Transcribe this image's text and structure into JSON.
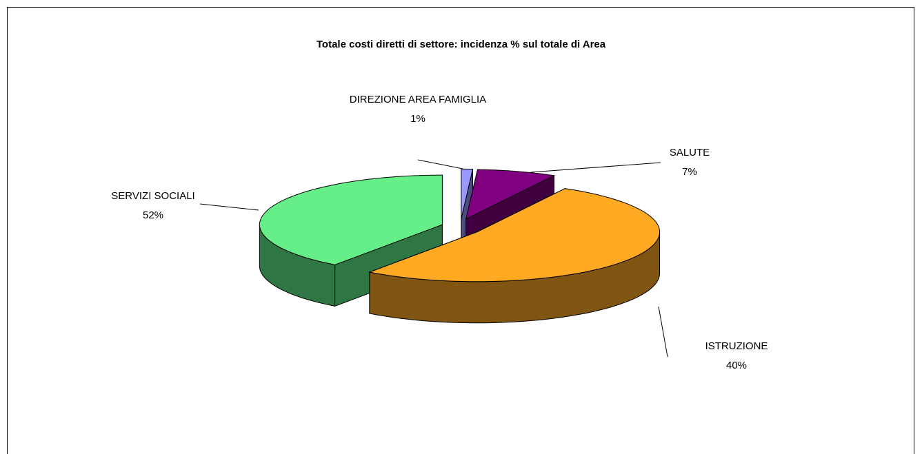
{
  "chart_data": {
    "type": "pie",
    "title": "Totale costi diretti di settore: incidenza % sul totale di Area",
    "categories": [
      "DIREZIONE AREA FAMIGLIA",
      "SALUTE",
      "SERVIZI SOCIALI",
      "ISTRUZIONE"
    ],
    "values": [
      1,
      7,
      52,
      40
    ],
    "value_labels": [
      "1%",
      "7%",
      "52%",
      "40%"
    ],
    "colors": [
      "#9999ff",
      "#800080",
      "#ffaa22",
      "#66ee88"
    ],
    "side_colors": [
      "#4c4c80",
      "#400040",
      "#805511",
      "#2e7744"
    ]
  }
}
